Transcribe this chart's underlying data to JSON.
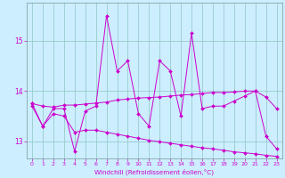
{
  "xlabel": "Windchill (Refroidissement éolien,°C)",
  "background_color": "#cceeff",
  "line_color": "#cc00cc",
  "grid_color": "#99cccc",
  "ylim": [
    12.65,
    15.75
  ],
  "xlim": [
    -0.5,
    23.5
  ],
  "yticks": [
    13,
    14,
    15
  ],
  "xticks": [
    0,
    1,
    2,
    3,
    4,
    5,
    6,
    7,
    8,
    9,
    10,
    11,
    12,
    13,
    14,
    15,
    16,
    17,
    18,
    19,
    20,
    21,
    22,
    23
  ],
  "spiky": [
    13.7,
    13.3,
    13.65,
    13.65,
    12.8,
    13.6,
    13.7,
    15.5,
    14.4,
    14.6,
    13.55,
    13.3,
    14.6,
    14.4,
    13.5,
    15.15,
    13.65,
    13.7,
    13.7,
    13.8,
    13.9,
    14.0,
    13.1,
    12.85
  ],
  "upper": [
    13.75,
    13.7,
    13.68,
    13.72,
    13.72,
    13.74,
    13.76,
    13.78,
    13.82,
    13.84,
    13.86,
    13.87,
    13.88,
    13.9,
    13.92,
    13.93,
    13.95,
    13.97,
    13.97,
    13.98,
    14.0,
    14.0,
    13.88,
    13.65
  ],
  "lower": [
    13.75,
    13.3,
    13.55,
    13.5,
    13.18,
    13.22,
    13.22,
    13.18,
    13.14,
    13.1,
    13.06,
    13.02,
    12.99,
    12.96,
    12.93,
    12.9,
    12.87,
    12.85,
    12.82,
    12.79,
    12.77,
    12.75,
    12.72,
    12.7
  ]
}
